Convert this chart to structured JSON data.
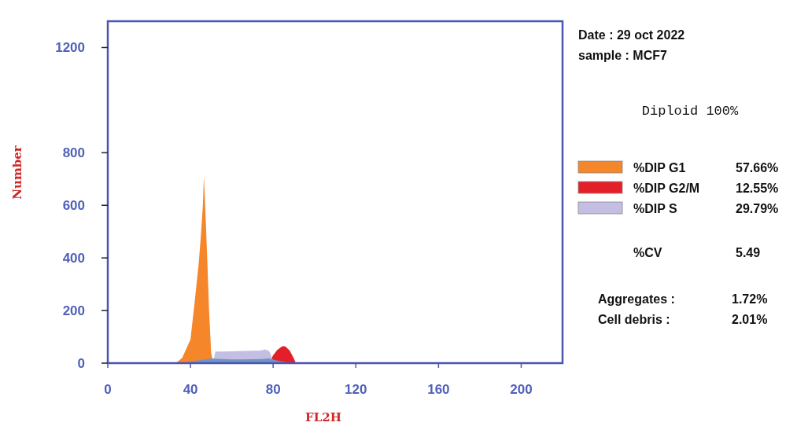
{
  "chart_data": {
    "type": "area",
    "xlabel": "FL2H",
    "ylabel": "Number",
    "xlim": [
      0,
      220
    ],
    "xticks": [
      0,
      40,
      80,
      120,
      160,
      200
    ],
    "ylim": [
      0,
      1300
    ],
    "yticks": [
      0,
      200,
      400,
      600,
      800,
      1200
    ],
    "grid": false,
    "legend": "right",
    "series": [
      {
        "name": "%DIP G1",
        "color": "#f5862a",
        "x": [
          33,
          36,
          40,
          42,
          44,
          45,
          46,
          46.5,
          47,
          48,
          49,
          50,
          51
        ],
        "values": [
          0,
          20,
          90,
          230,
          380,
          480,
          600,
          710,
          620,
          420,
          200,
          40,
          0
        ]
      },
      {
        "name": "%DIP G2/M",
        "color": "#e3202a",
        "x": [
          78,
          80,
          82,
          84,
          85,
          86,
          88,
          90,
          91
        ],
        "values": [
          0,
          30,
          50,
          62,
          65,
          63,
          48,
          18,
          0
        ]
      },
      {
        "name": "%DIP S",
        "color": "#c4bfe2",
        "x": [
          51,
          52,
          55,
          60,
          65,
          70,
          74,
          76,
          78,
          79,
          80
        ],
        "values": [
          0,
          44,
          44,
          45,
          46,
          47,
          48,
          52,
          46,
          30,
          0
        ]
      },
      {
        "color": "#6f95c6",
        "x": [
          35,
          40,
          45,
          50,
          55,
          60,
          65,
          70,
          75,
          78,
          82,
          86,
          89
        ],
        "values": [
          0,
          6,
          12,
          18,
          16,
          14,
          14,
          15,
          16,
          18,
          10,
          4,
          0
        ]
      }
    ],
    "annotations": [
      "Date : 29 oct 2022",
      "sample : MCF7",
      "Diploid 100%",
      "57.66%",
      "12.55%",
      "29.79%",
      "%CV",
      "5.49",
      "Aggregates :",
      "1.72%",
      "Cell debris :",
      "2.01%"
    ]
  }
}
